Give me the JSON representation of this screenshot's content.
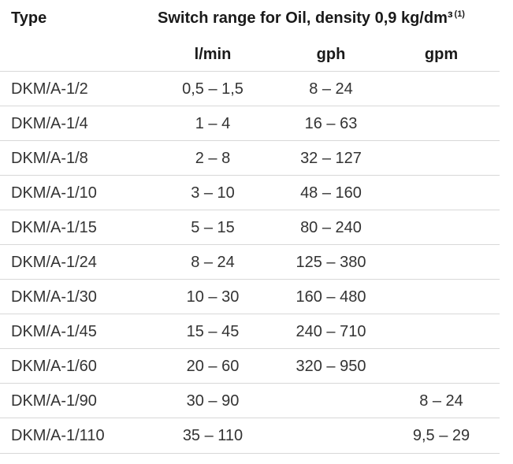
{
  "header": {
    "type_label": "Type",
    "switch_label": "Switch range for Oil, density 0,9 kg/dm³",
    "switch_footnote": "(1)",
    "col_lmin": "l/min",
    "col_gph": "gph",
    "col_gpm": "gpm"
  },
  "rows": [
    {
      "type": "DKM/A-1/2",
      "lmin": "0,5 – 1,5",
      "gph": "8 – 24",
      "gpm": ""
    },
    {
      "type": "DKM/A-1/4",
      "lmin": "1 – 4",
      "gph": "16 – 63",
      "gpm": ""
    },
    {
      "type": "DKM/A-1/8",
      "lmin": "2 – 8",
      "gph": "32 – 127",
      "gpm": ""
    },
    {
      "type": "DKM/A-1/10",
      "lmin": "3 – 10",
      "gph": "48 – 160",
      "gpm": ""
    },
    {
      "type": "DKM/A-1/15",
      "lmin": "5 – 15",
      "gph": "80 – 240",
      "gpm": ""
    },
    {
      "type": "DKM/A-1/24",
      "lmin": "8 – 24",
      "gph": "125 – 380",
      "gpm": ""
    },
    {
      "type": "DKM/A-1/30",
      "lmin": "10 – 30",
      "gph": "160 – 480",
      "gpm": ""
    },
    {
      "type": "DKM/A-1/45",
      "lmin": "15 – 45",
      "gph": "240 – 710",
      "gpm": ""
    },
    {
      "type": "DKM/A-1/60",
      "lmin": "20 – 60",
      "gph": "320 – 950",
      "gpm": ""
    },
    {
      "type": "DKM/A-1/90",
      "lmin": "30 – 90",
      "gph": "",
      "gpm": "8 – 24"
    },
    {
      "type": "DKM/A-1/110",
      "lmin": "35 – 110",
      "gph": "",
      "gpm": "9,5 – 29"
    }
  ]
}
